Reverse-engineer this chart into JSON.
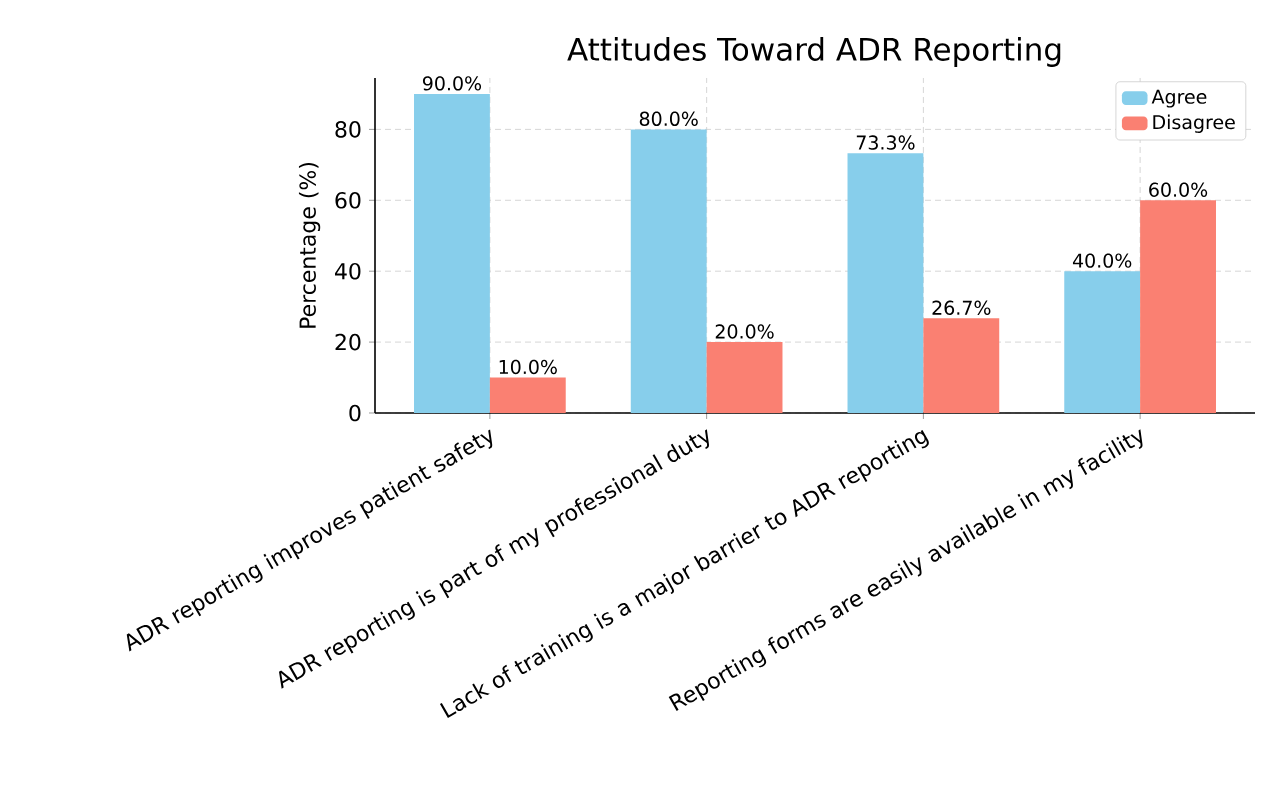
{
  "chart_data": {
    "type": "bar",
    "title": "Attitudes Toward ADR Reporting",
    "ylabel": "Percentage (%)",
    "categories": [
      "ADR reporting improves patient safety",
      "ADR reporting is part of my professional duty",
      "Lack of training is a major barrier to ADR reporting",
      "Reporting forms are easily available in my facility"
    ],
    "series": [
      {
        "name": "Agree",
        "color": "#87ceeb",
        "values": [
          90.0,
          80.0,
          73.3,
          40.0
        ],
        "value_labels": [
          "90.0%",
          "80.0%",
          "73.3%",
          "40.0%"
        ]
      },
      {
        "name": "Disagree",
        "color": "#fa8072",
        "values": [
          10.0,
          20.0,
          26.7,
          60.0
        ],
        "value_labels": [
          "10.0%",
          "20.0%",
          "26.7%",
          "60.0%"
        ]
      }
    ],
    "ylim": [
      0,
      94.5
    ],
    "yticks": [
      0,
      20,
      40,
      60,
      80
    ],
    "grid": true,
    "legend": "top right"
  }
}
